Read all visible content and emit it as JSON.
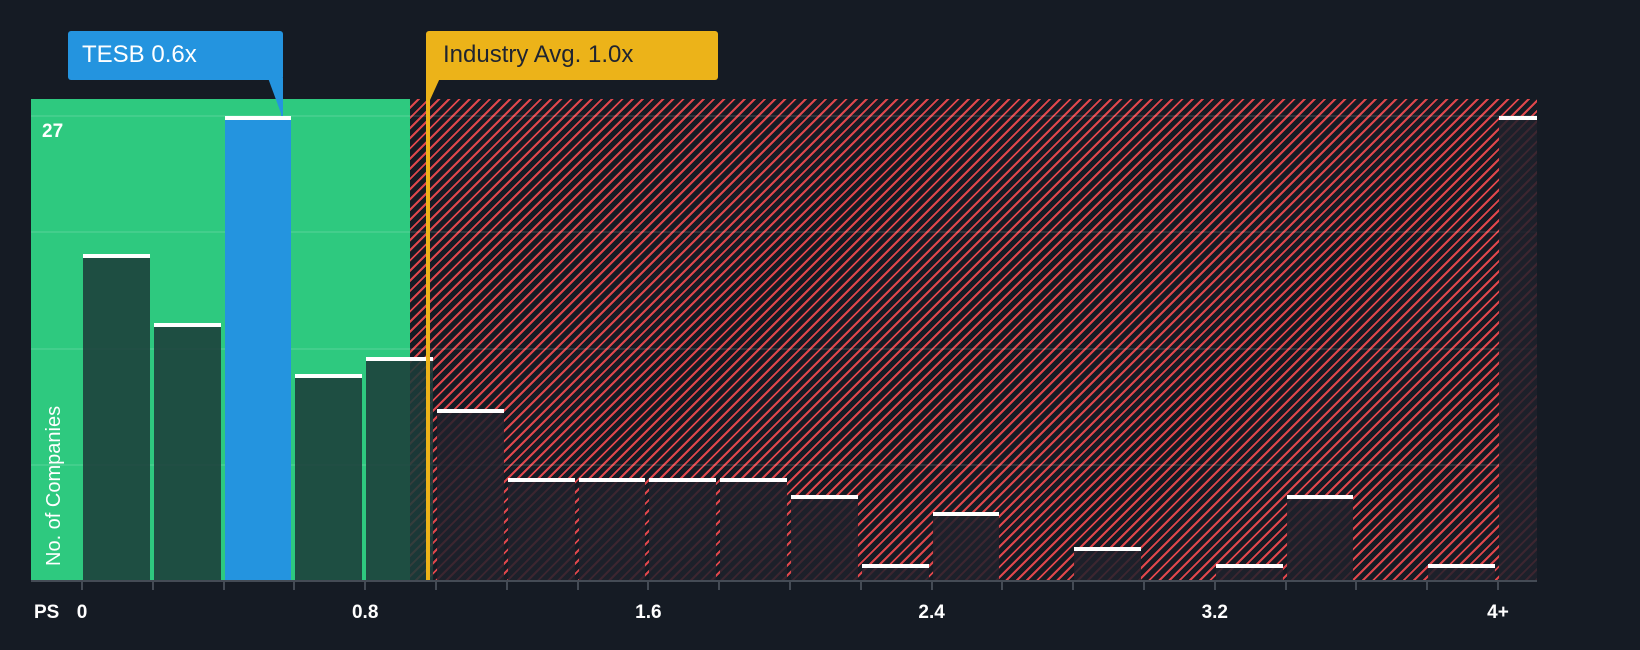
{
  "chart_data": {
    "type": "bar",
    "title": "",
    "xlabel": "PS",
    "ylabel": "No. of Companies",
    "y_max_label": "27",
    "ylim": [
      0,
      27
    ],
    "x_tick_labels": [
      "0",
      "0.8",
      "1.6",
      "2.4",
      "3.2",
      "4+"
    ],
    "bin_width": 0.2,
    "categories": [
      "0-0.2",
      "0.2-0.4",
      "0.4-0.6",
      "0.6-0.8",
      "0.8-1.0",
      "1.0-1.2",
      "1.2-1.4",
      "1.4-1.6",
      "1.6-1.8",
      "1.8-2.0",
      "2.0-2.2",
      "2.2-2.4",
      "2.4-2.6",
      "2.6-2.8",
      "2.8-3.0",
      "3.0-3.2",
      "3.2-3.4",
      "3.4-3.6",
      "3.6-3.8",
      "3.8-4.0",
      "4+"
    ],
    "values": [
      19,
      15,
      27,
      12,
      13,
      10,
      6,
      6,
      6,
      6,
      5,
      1,
      4,
      0,
      2,
      0,
      1,
      5,
      0,
      1,
      27
    ],
    "highlight_index": 2,
    "company": {
      "ticker": "TESB",
      "value": 0.6,
      "label": "TESB 0.6x"
    },
    "industry_avg": {
      "value": 1.0,
      "label": "Industry Avg. 1.0x"
    },
    "zones": [
      {
        "name": "undervalued",
        "from": 0,
        "to": 0.93,
        "color": "#2ec97f"
      },
      {
        "name": "overvalued",
        "from": 0.93,
        "to": 4.2,
        "color": "#e0474c",
        "pattern": "hatched"
      }
    ],
    "grid": true,
    "legend": "none"
  },
  "colors": {
    "background": "#151b24",
    "green_zone": "#2ec97f",
    "red_hatch": "#e0474c",
    "company": "#2494df",
    "industry": "#ecb319",
    "bar_cap": "#ffffff"
  },
  "labels": {
    "company_callout": "TESB 0.6x",
    "industry_callout": "Industry Avg. 1.0x",
    "y_axis_title": "No. of Companies",
    "y_max": "27",
    "x_axis_prefix": "PS"
  }
}
